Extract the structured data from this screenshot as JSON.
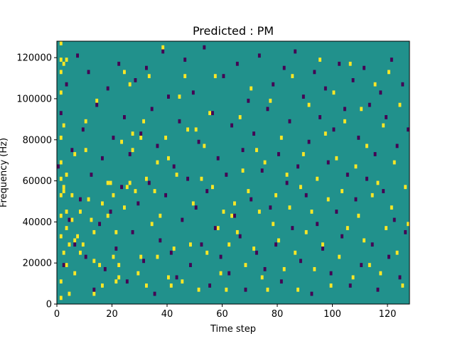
{
  "chart_data": {
    "type": "heatmap",
    "title": "Predicted : PM",
    "xlabel": "Time step",
    "ylabel": "Frequency (Hz)",
    "xlim": [
      0,
      128
    ],
    "ylim": [
      0,
      128000
    ],
    "x_ticks": [
      0,
      20,
      40,
      60,
      80,
      100,
      120
    ],
    "y_ticks": [
      0,
      20000,
      40000,
      60000,
      80000,
      100000,
      120000
    ],
    "colormap": "viridis",
    "background_value": 0,
    "colors": {
      "low": "#440154",
      "mid": "#21918c",
      "high": "#fde725"
    },
    "grid_shape": {
      "time_steps": 128,
      "freq_bins": 64,
      "bin_hz": 2000
    },
    "cells": {
      "high": [
        [
          1,
          1
        ],
        [
          1,
          5
        ],
        [
          1,
          16
        ],
        [
          1,
          21
        ],
        [
          1,
          26
        ],
        [
          1,
          30
        ],
        [
          1,
          34
        ],
        [
          1,
          40
        ],
        [
          1,
          51
        ],
        [
          1,
          56
        ],
        [
          1,
          59
        ],
        [
          1,
          63
        ],
        [
          2,
          12
        ],
        [
          2,
          27
        ],
        [
          2,
          28
        ],
        [
          2,
          43
        ],
        [
          2,
          58
        ],
        [
          3,
          9
        ],
        [
          3,
          18
        ],
        [
          3,
          22
        ],
        [
          3,
          31
        ],
        [
          3,
          59
        ],
        [
          4,
          2
        ],
        [
          4,
          14
        ],
        [
          5,
          20
        ],
        [
          5,
          26
        ],
        [
          6,
          7
        ],
        [
          6,
          15
        ],
        [
          6,
          36
        ],
        [
          7,
          16
        ],
        [
          8,
          12
        ],
        [
          8,
          22
        ],
        [
          9,
          14
        ],
        [
          10,
          37
        ],
        [
          10,
          44
        ],
        [
          11,
          25
        ],
        [
          12,
          20
        ],
        [
          13,
          2
        ],
        [
          13,
          10
        ],
        [
          13,
          17
        ],
        [
          14,
          49
        ],
        [
          15,
          9
        ],
        [
          16,
          4
        ],
        [
          16,
          24
        ],
        [
          18,
          21
        ],
        [
          18,
          29
        ],
        [
          19,
          29
        ],
        [
          20,
          26
        ],
        [
          20,
          11
        ],
        [
          21,
          5
        ],
        [
          21,
          17
        ],
        [
          22,
          9
        ],
        [
          22,
          6
        ],
        [
          23,
          39
        ],
        [
          24,
          23
        ],
        [
          24,
          56
        ],
        [
          25,
          28
        ],
        [
          26,
          29
        ],
        [
          26,
          53
        ],
        [
          27,
          37
        ],
        [
          27,
          41
        ],
        [
          28,
          27
        ],
        [
          29,
          7
        ],
        [
          30,
          11
        ],
        [
          30,
          40
        ],
        [
          31,
          44
        ],
        [
          32,
          4
        ],
        [
          32,
          30
        ],
        [
          33,
          55
        ],
        [
          34,
          19
        ],
        [
          35,
          27
        ],
        [
          36,
          34
        ],
        [
          36,
          11
        ],
        [
          37,
          21
        ],
        [
          38,
          62
        ],
        [
          39,
          40
        ],
        [
          40,
          6
        ],
        [
          40,
          35
        ],
        [
          41,
          4
        ],
        [
          42,
          13
        ],
        [
          43,
          31
        ],
        [
          44,
          50
        ],
        [
          45,
          5
        ],
        [
          46,
          55
        ],
        [
          47,
          42
        ],
        [
          48,
          14
        ],
        [
          49,
          24
        ],
        [
          50,
          42
        ],
        [
          51,
          3
        ],
        [
          52,
          30
        ],
        [
          53,
          38
        ],
        [
          54,
          12
        ],
        [
          55,
          46
        ],
        [
          56,
          28
        ],
        [
          57,
          55
        ],
        [
          58,
          18
        ],
        [
          59,
          7
        ],
        [
          60,
          22
        ],
        [
          61,
          3
        ],
        [
          62,
          14
        ],
        [
          63,
          21
        ],
        [
          64,
          24
        ],
        [
          65,
          17
        ],
        [
          66,
          45
        ],
        [
          67,
          32
        ],
        [
          68,
          9
        ],
        [
          69,
          27
        ],
        [
          70,
          52
        ],
        [
          71,
          13
        ],
        [
          72,
          37
        ],
        [
          73,
          22
        ],
        [
          74,
          6
        ],
        [
          75,
          34
        ],
        [
          76,
          3
        ],
        [
          77,
          49
        ],
        [
          78,
          19
        ],
        [
          79,
          26
        ],
        [
          80,
          15
        ],
        [
          81,
          40
        ],
        [
          82,
          8
        ],
        [
          83,
          31
        ],
        [
          84,
          23
        ],
        [
          85,
          55
        ],
        [
          86,
          12
        ],
        [
          87,
          3
        ],
        [
          88,
          28
        ],
        [
          89,
          36
        ],
        [
          90,
          17
        ],
        [
          91,
          48
        ],
        [
          92,
          22
        ],
        [
          93,
          8
        ],
        [
          94,
          30
        ],
        [
          95,
          59
        ],
        [
          96,
          14
        ],
        [
          97,
          41
        ],
        [
          98,
          25
        ],
        [
          99,
          4
        ],
        [
          100,
          51
        ],
        [
          101,
          35
        ],
        [
          102,
          11
        ],
        [
          103,
          27
        ],
        [
          104,
          44
        ],
        [
          105,
          18
        ],
        [
          106,
          58
        ],
        [
          107,
          6
        ],
        [
          108,
          33
        ],
        [
          109,
          21
        ],
        [
          110,
          47
        ],
        [
          111,
          15
        ],
        [
          112,
          38
        ],
        [
          113,
          9
        ],
        [
          114,
          26
        ],
        [
          115,
          53
        ],
        [
          116,
          29
        ],
        [
          117,
          7
        ],
        [
          118,
          43
        ],
        [
          119,
          18
        ],
        [
          120,
          56
        ],
        [
          121,
          23
        ],
        [
          122,
          34
        ],
        [
          123,
          12
        ],
        [
          124,
          48
        ],
        [
          125,
          4
        ],
        [
          126,
          28
        ],
        [
          127,
          19
        ]
      ],
      "low": [
        [
          0,
          33
        ],
        [
          1,
          46
        ],
        [
          2,
          9
        ],
        [
          3,
          53
        ],
        [
          4,
          20
        ],
        [
          5,
          37
        ],
        [
          6,
          14
        ],
        [
          7,
          60
        ],
        [
          8,
          25
        ],
        [
          9,
          42
        ],
        [
          10,
          11
        ],
        [
          11,
          56
        ],
        [
          12,
          31
        ],
        [
          13,
          3
        ],
        [
          14,
          48
        ],
        [
          15,
          19
        ],
        [
          16,
          35
        ],
        [
          17,
          8
        ],
        [
          18,
          52
        ],
        [
          19,
          22
        ],
        [
          20,
          40
        ],
        [
          21,
          13
        ],
        [
          22,
          58
        ],
        [
          23,
          28
        ],
        [
          24,
          45
        ],
        [
          25,
          5
        ],
        [
          26,
          36
        ],
        [
          27,
          17
        ],
        [
          28,
          54
        ],
        [
          29,
          24
        ],
        [
          30,
          41
        ],
        [
          31,
          10
        ],
        [
          32,
          57
        ],
        [
          33,
          29
        ],
        [
          34,
          47
        ],
        [
          35,
          2
        ],
        [
          36,
          38
        ],
        [
          37,
          15
        ],
        [
          38,
          61
        ],
        [
          39,
          26
        ],
        [
          40,
          50
        ],
        [
          41,
          12
        ],
        [
          42,
          33
        ],
        [
          43,
          6
        ],
        [
          44,
          44
        ],
        [
          45,
          20
        ],
        [
          46,
          59
        ],
        [
          47,
          30
        ],
        [
          48,
          9
        ],
        [
          49,
          51
        ],
        [
          50,
          23
        ],
        [
          51,
          39
        ],
        [
          52,
          14
        ],
        [
          53,
          62
        ],
        [
          54,
          27
        ],
        [
          55,
          4
        ],
        [
          56,
          46
        ],
        [
          57,
          18
        ],
        [
          58,
          35
        ],
        [
          59,
          11
        ],
        [
          60,
          55
        ],
        [
          61,
          31
        ],
        [
          62,
          7
        ],
        [
          63,
          43
        ],
        [
          64,
          21
        ],
        [
          65,
          58
        ],
        [
          66,
          16
        ],
        [
          67,
          37
        ],
        [
          68,
          3
        ],
        [
          69,
          49
        ],
        [
          70,
          25
        ],
        [
          71,
          41
        ],
        [
          72,
          12
        ],
        [
          73,
          60
        ],
        [
          74,
          32
        ],
        [
          75,
          8
        ],
        [
          76,
          47
        ],
        [
          77,
          23
        ],
        [
          78,
          53
        ],
        [
          79,
          14
        ],
        [
          80,
          36
        ],
        [
          81,
          5
        ],
        [
          82,
          57
        ],
        [
          83,
          29
        ],
        [
          84,
          44
        ],
        [
          85,
          18
        ],
        [
          86,
          61
        ],
        [
          87,
          33
        ],
        [
          88,
          10
        ],
        [
          89,
          50
        ],
        [
          90,
          26
        ],
        [
          91,
          39
        ],
        [
          92,
          2
        ],
        [
          93,
          56
        ],
        [
          94,
          19
        ],
        [
          95,
          45
        ],
        [
          96,
          13
        ],
        [
          97,
          52
        ],
        [
          98,
          34
        ],
        [
          99,
          7
        ],
        [
          100,
          42
        ],
        [
          101,
          22
        ],
        [
          102,
          58
        ],
        [
          103,
          16
        ],
        [
          104,
          47
        ],
        [
          105,
          31
        ],
        [
          106,
          4
        ],
        [
          107,
          54
        ],
        [
          108,
          25
        ],
        [
          109,
          40
        ],
        [
          110,
          9
        ],
        [
          111,
          57
        ],
        [
          112,
          30
        ],
        [
          113,
          48
        ],
        [
          114,
          14
        ],
        [
          115,
          36
        ],
        [
          116,
          3
        ],
        [
          117,
          51
        ],
        [
          118,
          27
        ],
        [
          119,
          45
        ],
        [
          120,
          11
        ],
        [
          121,
          59
        ],
        [
          122,
          20
        ],
        [
          123,
          38
        ],
        [
          124,
          6
        ],
        [
          125,
          53
        ],
        [
          126,
          17
        ],
        [
          127,
          42
        ]
      ]
    }
  }
}
